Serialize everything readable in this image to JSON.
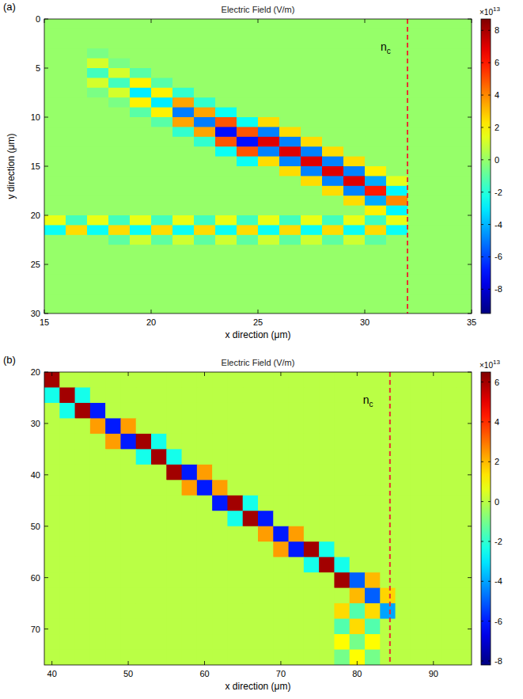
{
  "chart_data": [
    {
      "type": "heatmap",
      "panel_label": "(a)",
      "title": "Electric Field (V/m)",
      "xlabel": "x direction (μm)",
      "ylabel": "y direction (μm)",
      "xlim": [
        15,
        35
      ],
      "xticks": [
        15,
        20,
        25,
        30,
        35
      ],
      "ylim": [
        30,
        0
      ],
      "yticks": [
        0,
        5,
        10,
        15,
        20,
        25,
        30
      ],
      "grid": false,
      "zlim": [
        -9.5,
        8.7
      ],
      "zticks": [
        -8,
        -6,
        -4,
        -2,
        0,
        2,
        4,
        6,
        8
      ],
      "colorbar_multiplier": {
        "base": "×10",
        "exponent": "13"
      },
      "annotations": [
        {
          "text": "n",
          "sub": "c",
          "x": 32,
          "color": "#e8312f",
          "line_style": "dashed"
        }
      ],
      "z": [
        [
          0,
          0,
          0,
          0,
          0,
          0,
          0,
          0,
          0,
          0,
          0,
          0,
          0,
          0,
          0,
          0,
          0,
          0,
          0,
          0
        ],
        [
          0,
          0,
          0,
          0,
          0,
          0,
          0,
          0,
          0,
          0,
          0,
          0,
          0,
          0,
          0,
          0,
          0,
          0,
          0,
          0
        ],
        [
          0,
          0,
          0,
          0,
          0,
          0,
          0,
          0,
          0,
          0,
          0,
          0,
          0,
          0,
          0,
          0,
          0,
          0,
          0,
          0
        ],
        [
          0,
          0,
          -0.5,
          0,
          0,
          0,
          0,
          0,
          0,
          0,
          0,
          0,
          0,
          0,
          0,
          0,
          0,
          0,
          0,
          0
        ],
        [
          0,
          0,
          1.1,
          -0.5,
          0,
          0,
          0,
          0,
          0,
          0,
          0,
          0,
          0,
          0,
          0,
          0,
          0,
          0,
          0,
          0
        ],
        [
          0,
          0,
          -1.5,
          1.1,
          -1.1,
          0,
          0,
          0,
          0,
          0,
          0,
          0,
          0,
          0,
          0,
          0,
          0,
          0,
          0,
          0
        ],
        [
          0,
          0,
          1.1,
          -1.5,
          2.1,
          -1.1,
          0,
          0,
          0,
          0,
          0,
          0,
          0,
          0,
          0,
          0,
          0,
          0,
          0,
          0
        ],
        [
          0,
          0,
          -0.5,
          1.1,
          -3,
          2.1,
          -1.8,
          0,
          0,
          0,
          0,
          0,
          0,
          0,
          0,
          0,
          0,
          0,
          0,
          0
        ],
        [
          0,
          0,
          0,
          -0.5,
          2.1,
          -3,
          3.5,
          -1.8,
          0,
          0,
          0,
          0,
          0,
          0,
          0,
          0,
          0,
          0,
          0,
          0
        ],
        [
          0,
          0,
          0,
          0,
          -1.1,
          2.1,
          -5,
          3.5,
          -2.5,
          0,
          0,
          0,
          0,
          0,
          0,
          0,
          0,
          0,
          0,
          0
        ],
        [
          0,
          0,
          0,
          0,
          0,
          -1.1,
          3.5,
          -5,
          4.9,
          -2.5,
          2.5,
          0,
          0,
          0,
          0,
          0,
          0,
          0,
          0,
          0
        ],
        [
          0,
          0,
          0,
          0,
          0,
          0,
          -1.8,
          3.5,
          -7,
          4.9,
          -4.9,
          2.5,
          0,
          0,
          0,
          0,
          0,
          0,
          0,
          0
        ],
        [
          0,
          0,
          0,
          0,
          0,
          0,
          0,
          -1.8,
          4.9,
          -7,
          7,
          -4.9,
          2.5,
          0,
          0,
          0,
          0,
          0,
          0,
          0
        ],
        [
          0,
          0,
          0,
          0,
          0,
          0,
          0,
          0,
          -2.5,
          4.9,
          -4.9,
          7,
          -4.9,
          2.5,
          0,
          0,
          0,
          0,
          0,
          0
        ],
        [
          0,
          0,
          0,
          0,
          0,
          0,
          0,
          0,
          0,
          -2.5,
          2.5,
          -4.9,
          7,
          -4.9,
          2.5,
          0,
          0,
          0,
          0,
          0
        ],
        [
          0,
          0,
          0,
          0,
          0,
          0,
          0,
          0,
          0,
          0,
          0,
          2.5,
          -4.9,
          7,
          -4.9,
          2.1,
          0,
          0,
          0,
          0
        ],
        [
          0,
          0,
          0,
          0,
          0,
          0,
          0,
          0,
          0,
          0,
          0,
          0,
          2.5,
          -4.9,
          7,
          -4.2,
          1.4,
          0,
          0,
          0
        ],
        [
          0,
          0,
          0,
          0,
          0,
          0,
          0,
          0,
          0,
          0,
          0,
          0,
          0,
          2.5,
          -4.9,
          6,
          -2.8,
          0,
          0,
          0
        ],
        [
          0,
          0,
          0,
          0,
          0,
          0,
          0,
          0,
          0,
          0,
          0,
          0,
          0,
          0,
          2.5,
          -4.2,
          4,
          0,
          0,
          0
        ],
        [
          0,
          0,
          0,
          0,
          0,
          0,
          0,
          0,
          0,
          0,
          0,
          0,
          0,
          0,
          0,
          2.1,
          -2.8,
          0,
          0,
          0
        ],
        [
          1.5,
          -1.5,
          1.5,
          -1.5,
          1.5,
          -1.5,
          1.5,
          -1.5,
          1.5,
          -1.5,
          1.5,
          -1.5,
          1.5,
          -1.5,
          1.5,
          -1.5,
          1.5,
          0,
          0,
          0
        ],
        [
          -2.5,
          2.5,
          -2.5,
          2.5,
          -2.5,
          2.5,
          -2.5,
          2.5,
          -2.5,
          2.5,
          -2.5,
          2.5,
          -2.5,
          2.5,
          -2.5,
          2.5,
          -2.5,
          0,
          0,
          0
        ],
        [
          0,
          0,
          0,
          -1,
          1,
          -1,
          1,
          -1,
          1,
          -1,
          1,
          -1,
          1,
          -1,
          1,
          -1,
          0,
          0,
          0,
          0
        ],
        [
          0,
          0,
          0,
          0,
          0,
          0,
          0,
          0,
          0,
          0,
          0,
          0,
          0,
          0,
          0,
          0,
          0,
          0,
          0,
          0
        ],
        [
          0,
          0,
          0,
          0,
          0,
          0,
          0,
          0,
          0,
          0,
          0,
          0,
          0,
          0,
          0,
          0,
          0,
          0,
          0,
          0
        ],
        [
          0,
          0,
          0,
          0,
          0,
          0,
          0,
          0,
          0,
          0,
          0,
          0,
          0,
          0,
          0,
          0,
          0,
          0,
          0,
          0
        ],
        [
          0,
          0,
          0,
          0,
          0,
          0,
          0,
          0,
          0,
          0,
          0,
          0,
          0,
          0,
          0,
          0,
          0,
          0,
          0,
          0
        ],
        [
          0,
          0,
          0,
          0,
          0,
          0,
          0,
          0,
          0,
          0,
          0,
          0,
          0,
          0,
          0,
          0,
          0,
          0,
          0,
          0
        ],
        [
          0,
          0,
          0,
          0,
          0,
          0,
          0,
          0,
          0,
          0,
          0,
          0,
          0,
          0,
          0,
          0,
          0,
          0,
          0,
          0
        ],
        [
          0,
          0,
          0,
          0,
          0,
          0,
          0,
          0,
          0,
          0,
          0,
          0,
          0,
          0,
          0,
          0,
          0,
          0,
          0,
          0
        ]
      ]
    },
    {
      "type": "heatmap",
      "panel_label": "(b)",
      "title": "Electric Field (V/m)",
      "xlabel": "x direction (μm)",
      "xlim": [
        39,
        95
      ],
      "xticks": [
        40,
        50,
        60,
        70,
        80,
        90
      ],
      "ylim": [
        77,
        20
      ],
      "yticks": [
        20,
        30,
        40,
        50,
        60,
        70
      ],
      "grid": false,
      "zlim": [
        -8.2,
        6.5
      ],
      "zticks": [
        -8,
        -6,
        -4,
        -2,
        0,
        2,
        4,
        6
      ],
      "colorbar_multiplier": {
        "base": "×10",
        "exponent": "13"
      },
      "annotations": [
        {
          "text": "n",
          "sub": "c",
          "x": 84.3,
          "color": "#e8312f",
          "line_style": "dashed"
        }
      ],
      "z": [
        [
          6,
          0,
          0,
          0,
          0,
          0,
          0,
          0,
          0,
          0,
          0,
          0,
          0,
          0,
          0,
          0,
          0,
          0,
          0,
          0,
          0,
          0,
          0,
          0,
          0,
          0,
          0,
          0
        ],
        [
          -2.4,
          6,
          -2.4,
          0,
          0,
          0,
          0,
          0,
          0,
          0,
          0,
          0,
          0,
          0,
          0,
          0,
          0,
          0,
          0,
          0,
          0,
          0,
          0,
          0,
          0,
          0,
          0,
          0
        ],
        [
          0,
          -2.4,
          6,
          -6,
          0,
          0,
          0,
          0,
          0,
          0,
          0,
          0,
          0,
          0,
          0,
          0,
          0,
          0,
          0,
          0,
          0,
          0,
          0,
          0,
          0,
          0,
          0,
          0
        ],
        [
          0,
          0,
          0,
          2.4,
          -6,
          2.4,
          0,
          0,
          0,
          0,
          0,
          0,
          0,
          0,
          0,
          0,
          0,
          0,
          0,
          0,
          0,
          0,
          0,
          0,
          0,
          0,
          0,
          0
        ],
        [
          0,
          0,
          0,
          0,
          2.4,
          -6,
          6,
          -2.4,
          0,
          0,
          0,
          0,
          0,
          0,
          0,
          0,
          0,
          0,
          0,
          0,
          0,
          0,
          0,
          0,
          0,
          0,
          0,
          0
        ],
        [
          0,
          0,
          0,
          0,
          0,
          0,
          -2.4,
          6,
          -2.4,
          0,
          0,
          0,
          0,
          0,
          0,
          0,
          0,
          0,
          0,
          0,
          0,
          0,
          0,
          0,
          0,
          0,
          0,
          0
        ],
        [
          0,
          0,
          0,
          0,
          0,
          0,
          0,
          0,
          6,
          -6,
          2.4,
          0,
          0,
          0,
          0,
          0,
          0,
          0,
          0,
          0,
          0,
          0,
          0,
          0,
          0,
          0,
          0,
          0
        ],
        [
          0,
          0,
          0,
          0,
          0,
          0,
          0,
          0,
          0,
          2.4,
          -6,
          2.4,
          0,
          0,
          0,
          0,
          0,
          0,
          0,
          0,
          0,
          0,
          0,
          0,
          0,
          0,
          0,
          0
        ],
        [
          0,
          0,
          0,
          0,
          0,
          0,
          0,
          0,
          0,
          0,
          0,
          -6,
          6,
          -2.4,
          0,
          0,
          0,
          0,
          0,
          0,
          0,
          0,
          0,
          0,
          0,
          0,
          0,
          0
        ],
        [
          0,
          0,
          0,
          0,
          0,
          0,
          0,
          0,
          0,
          0,
          0,
          0,
          -2.4,
          6,
          -6,
          0,
          0,
          0,
          0,
          0,
          0,
          0,
          0,
          0,
          0,
          0,
          0,
          0
        ],
        [
          0,
          0,
          0,
          0,
          0,
          0,
          0,
          0,
          0,
          0,
          0,
          0,
          0,
          0,
          2.4,
          -6,
          2.4,
          0,
          0,
          0,
          0,
          0,
          0,
          0,
          0,
          0,
          0,
          0
        ],
        [
          0,
          0,
          0,
          0,
          0,
          0,
          0,
          0,
          0,
          0,
          0,
          0,
          0,
          0,
          0,
          2.4,
          -6,
          6,
          -2.4,
          0,
          0,
          0,
          0,
          0,
          0,
          0,
          0,
          0
        ],
        [
          0,
          0,
          0,
          0,
          0,
          0,
          0,
          0,
          0,
          0,
          0,
          0,
          0,
          0,
          0,
          0,
          0,
          -2.4,
          6,
          -2.4,
          0,
          0,
          0,
          0,
          0,
          0,
          0,
          0
        ],
        [
          0,
          0,
          0,
          0,
          0,
          0,
          0,
          0,
          0,
          0,
          0,
          0,
          0,
          0,
          0,
          0,
          0,
          0,
          0,
          6,
          -5,
          2,
          0,
          0,
          0,
          0,
          0,
          0
        ],
        [
          0,
          0,
          0,
          0,
          0,
          0,
          0,
          0,
          0,
          0,
          0,
          0,
          0,
          0,
          0,
          0,
          0,
          0,
          0,
          0,
          2,
          -5,
          1.6,
          0,
          0,
          0,
          0,
          0
        ],
        [
          0,
          0,
          0,
          0,
          0,
          0,
          0,
          0,
          0,
          0,
          0,
          0,
          0,
          0,
          0,
          0,
          0,
          0,
          0,
          1.5,
          -1.5,
          1.5,
          -4,
          0,
          0,
          0,
          0,
          0
        ],
        [
          0,
          0,
          0,
          0,
          0,
          0,
          0,
          0,
          0,
          0,
          0,
          0,
          0,
          0,
          0,
          0,
          0,
          0,
          0,
          -1.5,
          1.5,
          -1.5,
          0,
          0,
          0,
          0,
          0,
          0
        ],
        [
          0,
          0,
          0,
          0,
          0,
          0,
          0,
          0,
          0,
          0,
          0,
          0,
          0,
          0,
          0,
          0,
          0,
          0,
          0,
          1,
          -1,
          1,
          0,
          0,
          0,
          0,
          0,
          0
        ],
        [
          0,
          0,
          0,
          0,
          0,
          0,
          0,
          0,
          0,
          0,
          0,
          0,
          0,
          0,
          0,
          0,
          0,
          0,
          0,
          -1,
          1,
          -1,
          0,
          0,
          0,
          0,
          0,
          0
        ]
      ]
    }
  ]
}
